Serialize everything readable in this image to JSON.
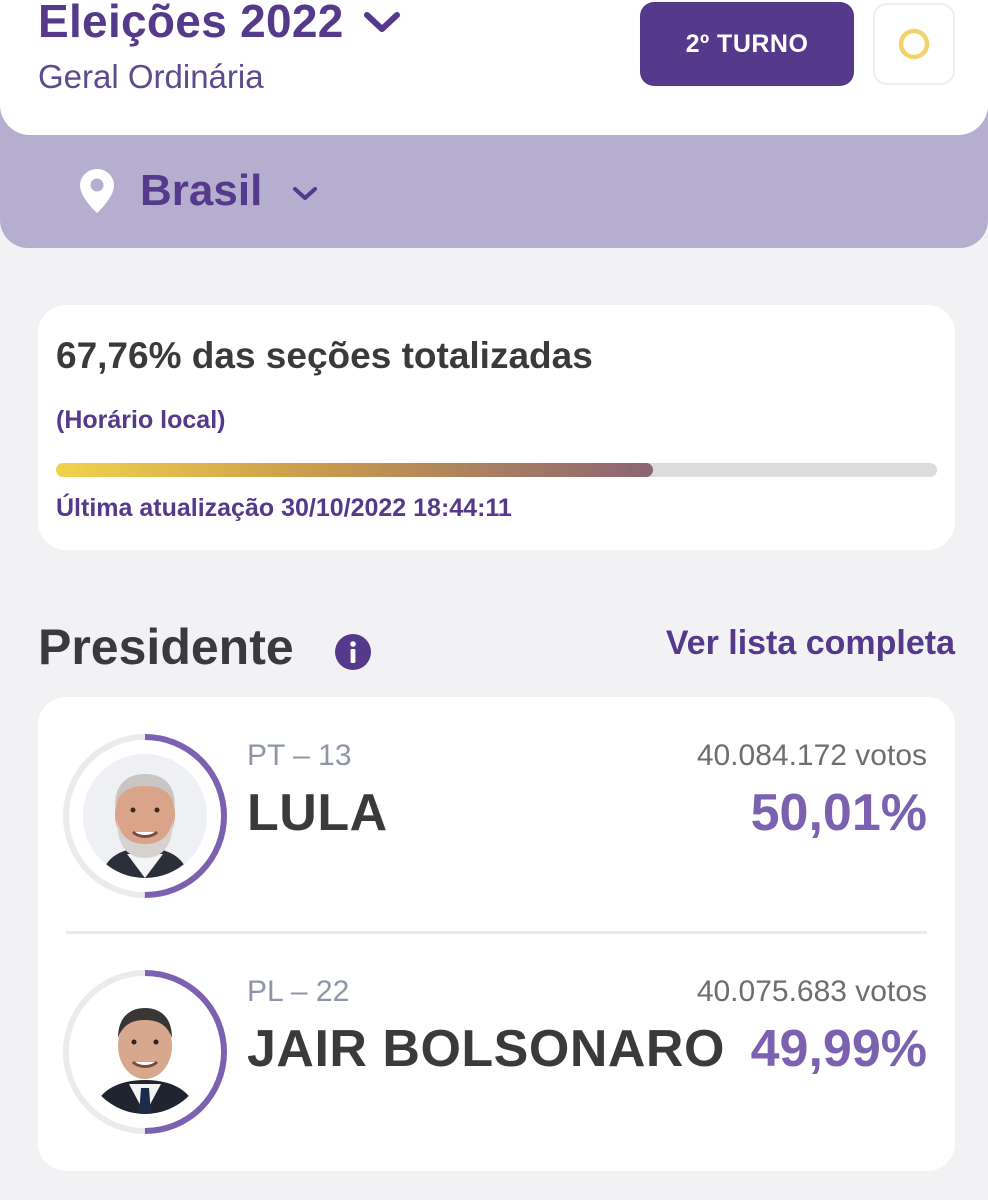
{
  "header": {
    "title": "Eleições 2022",
    "subtitle": "Geral Ordinária",
    "turno_button": "2º TURNO",
    "theme_icon": "circle-icon"
  },
  "location": {
    "name": "Brasil",
    "icon": "map-pin-icon"
  },
  "progress": {
    "sections_text": "67,76% das seções totalizadas",
    "percent": 67.76,
    "local_time_note": "(Horário local)",
    "last_update": "Última atualização 30/10/2022 18:44:11"
  },
  "section": {
    "title": "Presidente",
    "info_icon": "info-icon",
    "full_list_link": "Ver lista completa"
  },
  "candidates": [
    {
      "party": "PT – 13",
      "name": "LULA",
      "votes": "40.084.172 votos",
      "percent_text": "50,01%",
      "percent_value": 50.01,
      "photo": "candidate-photo-lula"
    },
    {
      "party": "PL – 22",
      "name": "JAIR BOLSONARO",
      "votes": "40.075.683 votos",
      "percent_text": "49,99%",
      "percent_value": 49.99,
      "photo": "candidate-photo-bolsonaro"
    }
  ],
  "colors": {
    "brand_purple": "#55398a",
    "percent_purple": "#7b61b0",
    "band_lavender": "#b6aecf",
    "progress_start": "#f0d34a",
    "progress_end": "#8a6573",
    "theme_ring": "#f2d36b"
  }
}
